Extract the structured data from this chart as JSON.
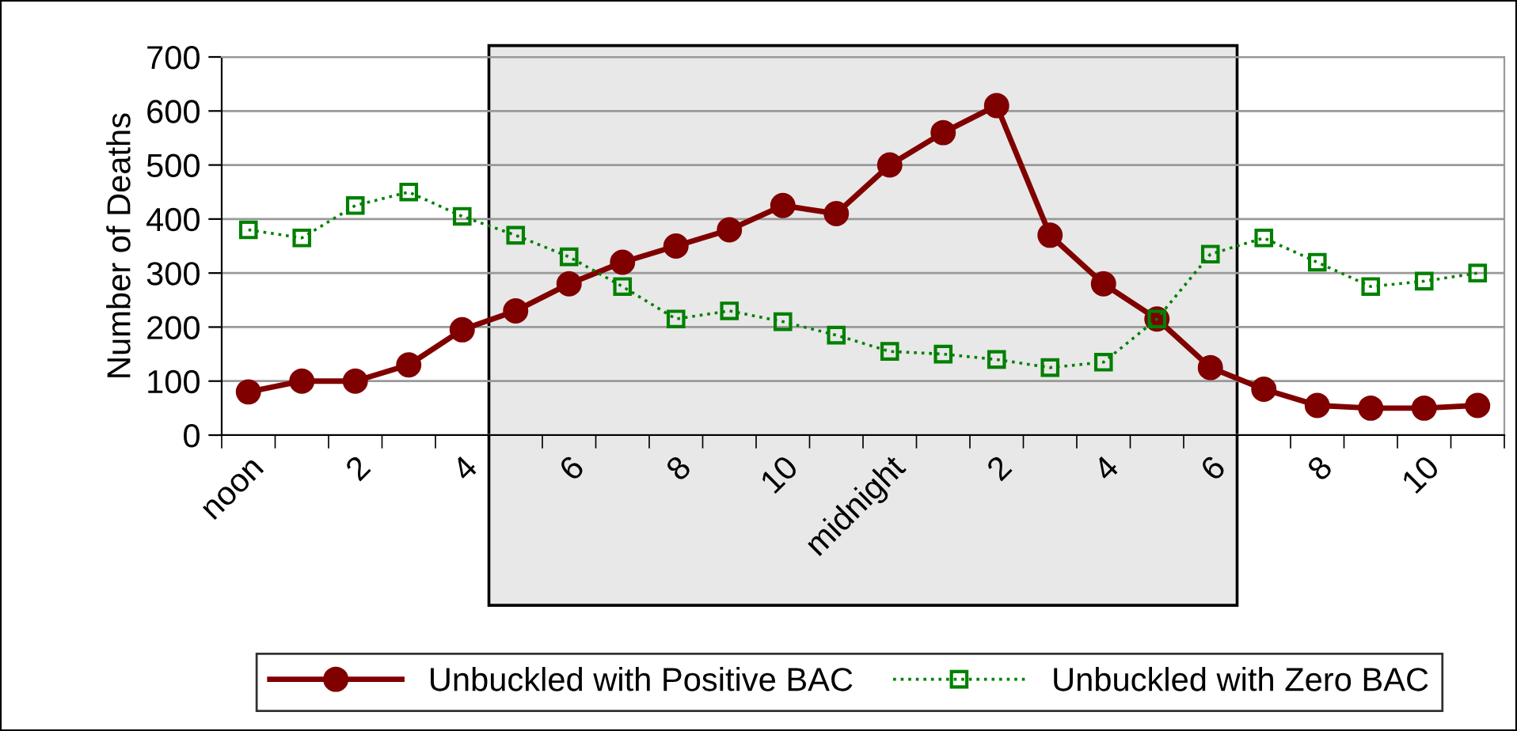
{
  "chart_data": {
    "type": "line",
    "ylabel": "Number of Deaths",
    "categories": [
      "noon",
      null,
      "2",
      null,
      "4",
      null,
      "6",
      null,
      "8",
      null,
      "10",
      null,
      "midnight",
      null,
      "2",
      null,
      "4",
      null,
      "6",
      null,
      "8",
      null,
      "10",
      null
    ],
    "ylim": [
      0,
      700
    ],
    "yticks": [
      0,
      100,
      200,
      300,
      400,
      500,
      600,
      700
    ],
    "grid": "y",
    "legend": "bottom",
    "series": [
      {
        "name": "Unbuckled with Positive BAC",
        "color": "#800000",
        "marker": "circle",
        "line_style": "solid",
        "values": [
          80,
          100,
          100,
          130,
          195,
          230,
          280,
          320,
          350,
          380,
          425,
          410,
          500,
          560,
          610,
          370,
          280,
          215,
          125,
          85,
          55,
          50,
          50,
          55
        ]
      },
      {
        "name": "Unbuckled with Zero BAC",
        "color": "#008000",
        "marker": "square",
        "line_style": "dotted",
        "values": [
          380,
          365,
          425,
          450,
          405,
          370,
          330,
          275,
          215,
          230,
          210,
          185,
          155,
          150,
          140,
          125,
          135,
          215,
          335,
          365,
          320,
          275,
          285,
          300
        ]
      }
    ]
  }
}
